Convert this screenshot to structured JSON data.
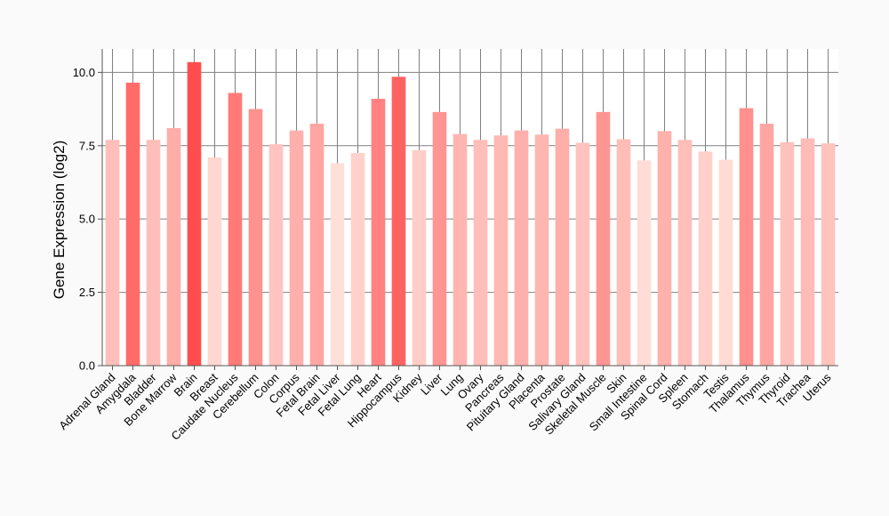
{
  "chart_data": {
    "type": "bar",
    "ylabel": "Gene Expression (log2)",
    "xlabel": "",
    "ylim": [
      0,
      10.8
    ],
    "yticks": [
      "0.0",
      "2.5",
      "5.0",
      "7.5",
      "10.0"
    ],
    "ytick_values": [
      0,
      2.5,
      5.0,
      7.5,
      10.0
    ],
    "grid": true,
    "categories": [
      "Adrenal Gland",
      "Amygdala",
      "Bladder",
      "Bone Marrow",
      "Brain",
      "Breast",
      "Caudate Nucleus",
      "Cerebellum",
      "Colon",
      "Corpus",
      "Fetal Brain",
      "Fetal Liver",
      "Fetal Lung",
      "Heart",
      "Hippocampus",
      "Kidney",
      "Liver",
      "Lung",
      "Ovary",
      "Pancreas",
      "Pituitary Gland",
      "Placenta",
      "Prostate",
      "Salivary Gland",
      "Skeletal Muscle",
      "Skin",
      "Small Intestine",
      "Spinal Cord",
      "Spleen",
      "Stomach",
      "Testis",
      "Thalamus",
      "Thymus",
      "Thyroid",
      "Trachea",
      "Uterus"
    ],
    "values": [
      7.7,
      9.65,
      7.7,
      8.1,
      10.35,
      7.1,
      9.3,
      8.75,
      7.55,
      8.02,
      8.25,
      6.9,
      7.25,
      9.1,
      9.85,
      7.35,
      8.65,
      7.9,
      7.7,
      7.85,
      8.02,
      7.88,
      8.08,
      7.6,
      8.65,
      7.72,
      7.0,
      8.0,
      7.7,
      7.3,
      7.02,
      8.78,
      8.25,
      7.62,
      7.75,
      7.58
    ],
    "colors": {
      "low": "#ffe0d9",
      "high": "#ff4d4d",
      "grid": "#808080",
      "axis": "#555555"
    }
  }
}
